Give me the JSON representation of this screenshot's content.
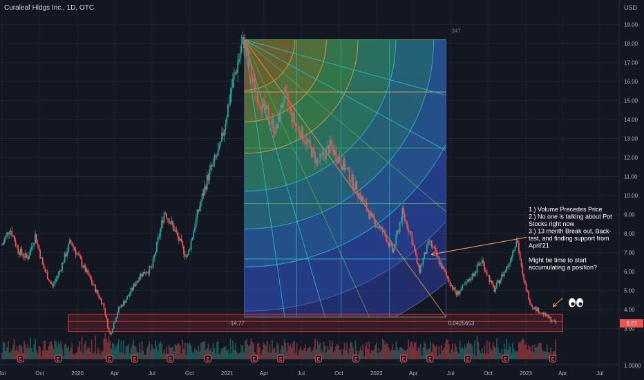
{
  "header": {
    "symbol_title": "Curaleaf Hldgs Inc., 1D, OTC",
    "currency": "USD"
  },
  "colors": {
    "background": "#131722",
    "up_candle": "#26a69a",
    "down_candle": "#ef5350",
    "fib_orange": "#f7a24b",
    "fib_teal": "#2bb5c7",
    "fib_green": "#4caf50",
    "fib_blue": "#3f51b5",
    "support_box": "#e53935",
    "axis_text": "#b2b5be",
    "annotation_arrow": "#f7a24b"
  },
  "chart_data": {
    "type": "candlestick",
    "ylim": [
      1,
      20
    ],
    "xlim": [
      "2019-07-01",
      "2024-07-01"
    ],
    "yticks": [
      1.0,
      3.0,
      4.0,
      5.0,
      6.0,
      7.0,
      8.0,
      9.0,
      10.0,
      11.0,
      12.0,
      13.0,
      14.0,
      15.0,
      16.0,
      17.0,
      18.0,
      19.0
    ],
    "ytick_labels": [
      "1.0000",
      "3.00",
      "4.00",
      "5.00",
      "6.00",
      "7.00",
      "8.00",
      "9.00",
      "10.00",
      "11.00",
      "12.00",
      "13.00",
      "14.00",
      "15.00",
      "16.00",
      "17.00",
      "18.00",
      "19.00"
    ],
    "xtick_labels": [
      "Jul",
      "Oct",
      "2020",
      "Apr",
      "Jul",
      "Oct",
      "2021",
      "Apr",
      "Jul",
      "Oct",
      "2022",
      "Apr",
      "Jul",
      "Oct",
      "2023",
      "Apr",
      "Jul"
    ],
    "xtick_dates": [
      "2019-07-01",
      "2019-10-01",
      "2020-01-01",
      "2020-04-01",
      "2020-07-01",
      "2020-10-01",
      "2021-01-01",
      "2021-04-01",
      "2021-07-01",
      "2021-10-01",
      "2022-01-01",
      "2022-04-01",
      "2022-07-01",
      "2022-10-01",
      "2023-01-01",
      "2023-04-01",
      "2023-07-01"
    ],
    "price_path": [
      {
        "date": "2019-07-01",
        "close": 7.4
      },
      {
        "date": "2019-07-20",
        "close": 8.3
      },
      {
        "date": "2019-08-10",
        "close": 7.1
      },
      {
        "date": "2019-09-01",
        "close": 6.7
      },
      {
        "date": "2019-09-20",
        "close": 7.9
      },
      {
        "date": "2019-10-10",
        "close": 6.2
      },
      {
        "date": "2019-11-01",
        "close": 5.2
      },
      {
        "date": "2019-11-20",
        "close": 6.1
      },
      {
        "date": "2019-12-15",
        "close": 7.6
      },
      {
        "date": "2020-01-10",
        "close": 6.5
      },
      {
        "date": "2020-02-01",
        "close": 5.6
      },
      {
        "date": "2020-03-05",
        "close": 4.2
      },
      {
        "date": "2020-03-20",
        "close": 2.6
      },
      {
        "date": "2020-04-10",
        "close": 4.0
      },
      {
        "date": "2020-05-01",
        "close": 4.6
      },
      {
        "date": "2020-06-01",
        "close": 5.8
      },
      {
        "date": "2020-07-01",
        "close": 6.2
      },
      {
        "date": "2020-08-01",
        "close": 9.2
      },
      {
        "date": "2020-08-25",
        "close": 8.2
      },
      {
        "date": "2020-09-25",
        "close": 6.7
      },
      {
        "date": "2020-10-20",
        "close": 9.0
      },
      {
        "date": "2020-11-15",
        "close": 11.0
      },
      {
        "date": "2020-12-15",
        "close": 12.5
      },
      {
        "date": "2021-01-10",
        "close": 15.5
      },
      {
        "date": "2021-02-05",
        "close": 17.8
      },
      {
        "date": "2021-02-12",
        "close": 18.2
      },
      {
        "date": "2021-03-01",
        "close": 16.2
      },
      {
        "date": "2021-03-25",
        "close": 14.8
      },
      {
        "date": "2021-05-01",
        "close": 13.4
      },
      {
        "date": "2021-05-20",
        "close": 15.3
      },
      {
        "date": "2021-06-15",
        "close": 13.8
      },
      {
        "date": "2021-07-10",
        "close": 13.0
      },
      {
        "date": "2021-08-10",
        "close": 11.7
      },
      {
        "date": "2021-09-10",
        "close": 12.6
      },
      {
        "date": "2021-10-15",
        "close": 11.5
      },
      {
        "date": "2021-11-15",
        "close": 10.3
      },
      {
        "date": "2021-12-20",
        "close": 8.8
      },
      {
        "date": "2022-01-20",
        "close": 8.0
      },
      {
        "date": "2022-02-10",
        "close": 7.0
      },
      {
        "date": "2022-03-05",
        "close": 9.1
      },
      {
        "date": "2022-03-25",
        "close": 8.0
      },
      {
        "date": "2022-04-15",
        "close": 6.0
      },
      {
        "date": "2022-05-10",
        "close": 7.6
      },
      {
        "date": "2022-06-15",
        "close": 6.0
      },
      {
        "date": "2022-07-15",
        "close": 4.8
      },
      {
        "date": "2022-08-15",
        "close": 5.5
      },
      {
        "date": "2022-09-15",
        "close": 6.6
      },
      {
        "date": "2022-10-15",
        "close": 5.0
      },
      {
        "date": "2022-11-20",
        "close": 6.4
      },
      {
        "date": "2022-12-10",
        "close": 7.8
      },
      {
        "date": "2022-12-25",
        "close": 5.6
      },
      {
        "date": "2023-01-15",
        "close": 4.2
      },
      {
        "date": "2023-02-10",
        "close": 3.8
      },
      {
        "date": "2023-03-01",
        "close": 3.5
      },
      {
        "date": "2023-03-15",
        "close": 3.27
      }
    ],
    "last_price_label": "3.27",
    "last_price": 3.27,
    "fib_box": {
      "start": "2021-02-12",
      "end": "2022-06-20",
      "top": 18.2,
      "bottom": 3.6,
      "count_label": "347"
    },
    "fib_levels": [
      18.2,
      15.45,
      12.5,
      9.58,
      6.66,
      3.6
    ],
    "support_zone": {
      "start": "2019-12-10",
      "end": "2023-04-01",
      "low": 2.85,
      "high": 3.75
    },
    "support_labels": [
      "-14.77",
      "0.0425653"
    ],
    "annotations": [
      "1.) Volume Precedes Price",
      "2.) No one is talking about Pot",
      "Stocks right now",
      "3.)  13 month Break out, Back-",
      "test, and finding support from",
      "April'21",
      "",
      "Might be time to start",
      "accumulating a position?"
    ],
    "annotation_arrows": [
      {
        "from_date": "2023-01-03",
        "from_price": 7.8,
        "to_date": "2022-05-15",
        "to_price": 6.9
      },
      {
        "from_date": "2023-04-01",
        "from_price": 4.6,
        "to_date": "2023-03-08",
        "to_price": 4.15
      }
    ],
    "earnings_marks": [
      "2019-08-15",
      "2019-11-15",
      "2020-03-20",
      "2020-05-20",
      "2020-08-15",
      "2020-11-15",
      "2021-03-08",
      "2021-05-12",
      "2021-08-12",
      "2021-11-12",
      "2022-03-08",
      "2022-05-12",
      "2022-08-12",
      "2022-11-12",
      "2023-03-08"
    ]
  }
}
